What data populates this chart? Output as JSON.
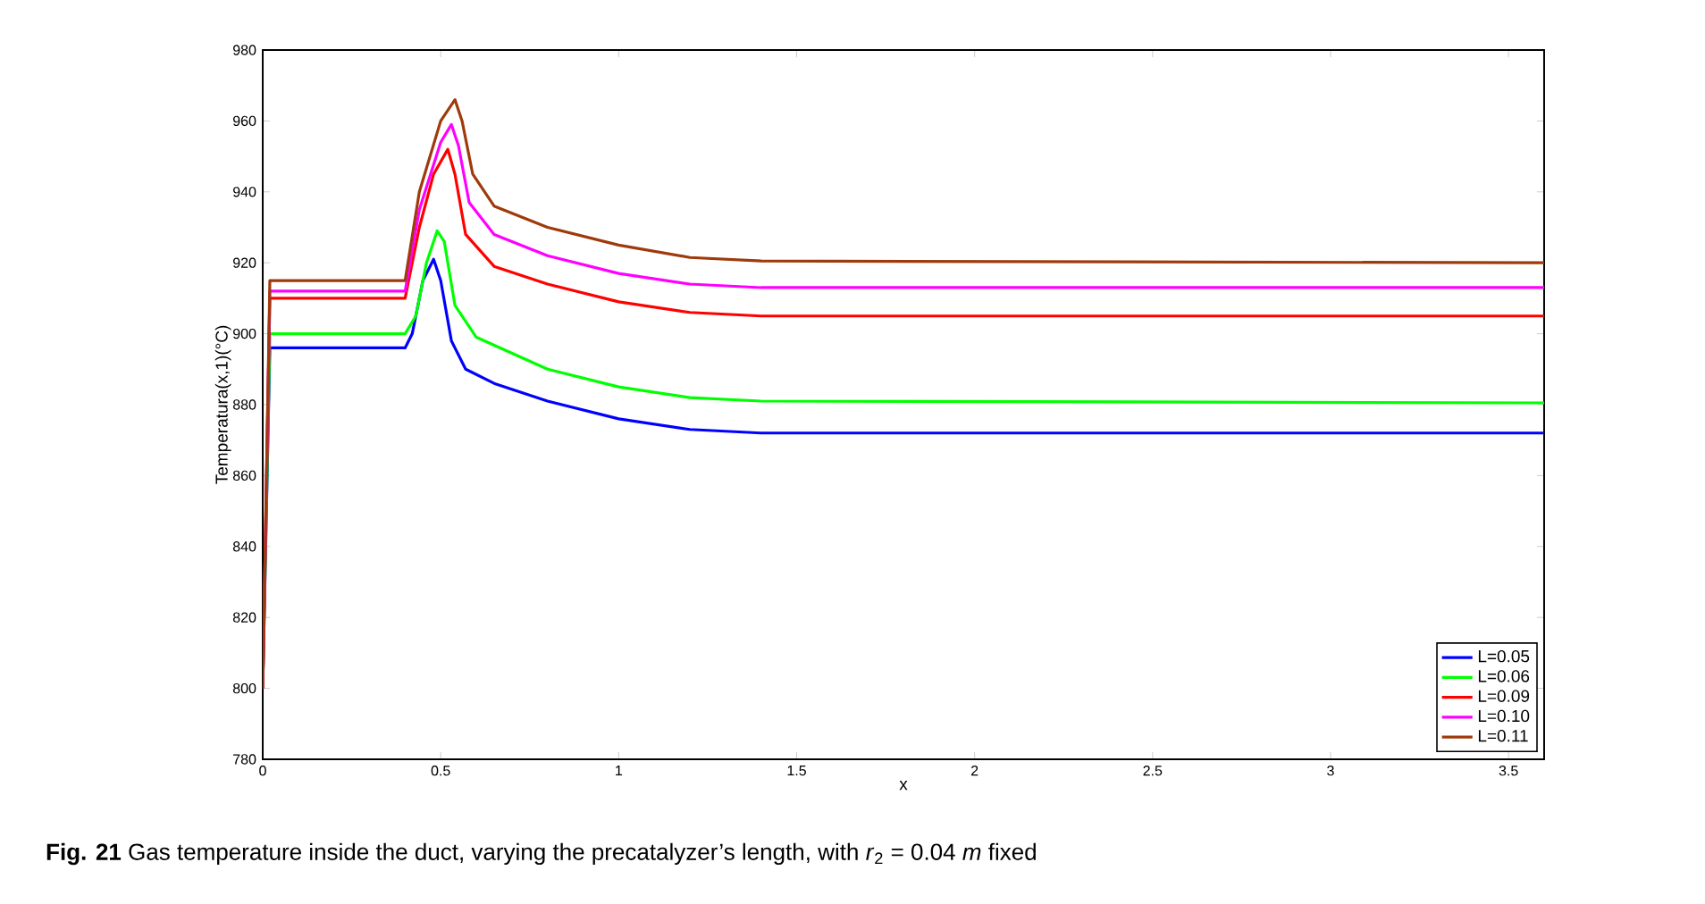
{
  "chart_data": {
    "type": "line",
    "xlabel": "x",
    "ylabel": "Temperatura(x,1)(°C)",
    "xlim": [
      0,
      3.6
    ],
    "ylim": [
      780,
      980
    ],
    "xticks": [
      0,
      0.5,
      1,
      1.5,
      2,
      2.5,
      3,
      3.5
    ],
    "yticks": [
      780,
      800,
      820,
      840,
      860,
      880,
      900,
      920,
      940,
      960,
      980
    ],
    "legend": "bottom right",
    "line_style": "solid",
    "annotations": [
      "**Fig. 21**  Gas temperature inside the duct, varying the precatalyzer’s length, with *r*$_{2}$ = 0.04 *m* fixed"
    ],
    "series": [
      {
        "name": "L=0.05",
        "color": "#0000ff",
        "x": [
          0,
          0.02,
          0.4,
          0.42,
          0.45,
          0.48,
          0.5,
          0.53,
          0.57,
          0.65,
          0.8,
          1.0,
          1.2,
          1.4,
          1.6,
          3.6
        ],
        "values": [
          800,
          896,
          896,
          900,
          915,
          921,
          915,
          898,
          890,
          886,
          881,
          876,
          873,
          872,
          872,
          872
        ]
      },
      {
        "name": "L=0.06",
        "color": "#00ff00",
        "x": [
          0,
          0.02,
          0.4,
          0.43,
          0.46,
          0.49,
          0.51,
          0.54,
          0.6,
          0.8,
          1.0,
          1.2,
          1.4,
          3.6
        ],
        "values": [
          800,
          900,
          900,
          905,
          920,
          929,
          926,
          908,
          899,
          890,
          885,
          882,
          881,
          880.5
        ]
      },
      {
        "name": "L=0.09",
        "color": "#ff0000",
        "x": [
          0,
          0.02,
          0.4,
          0.44,
          0.48,
          0.52,
          0.54,
          0.57,
          0.65,
          0.8,
          1.0,
          1.2,
          1.4,
          3.6
        ],
        "values": [
          800,
          910,
          910,
          930,
          945,
          952,
          945,
          928,
          919,
          914,
          909,
          906,
          905,
          905
        ]
      },
      {
        "name": "L=0.10",
        "color": "#ff00ff",
        "x": [
          0,
          0.02,
          0.4,
          0.44,
          0.5,
          0.53,
          0.55,
          0.58,
          0.65,
          0.8,
          1.0,
          1.2,
          1.4,
          3.6
        ],
        "values": [
          800,
          912,
          912,
          935,
          954,
          959,
          953,
          937,
          928,
          922,
          917,
          914,
          913,
          913
        ]
      },
      {
        "name": "L=0.11",
        "color": "#9e3a0c",
        "x": [
          0,
          0.02,
          0.4,
          0.44,
          0.5,
          0.54,
          0.56,
          0.59,
          0.65,
          0.8,
          1.0,
          1.2,
          1.4,
          3.6
        ],
        "values": [
          800,
          915,
          915,
          940,
          960,
          966,
          960,
          945,
          936,
          930,
          925,
          921.5,
          920.5,
          920
        ]
      }
    ]
  }
}
